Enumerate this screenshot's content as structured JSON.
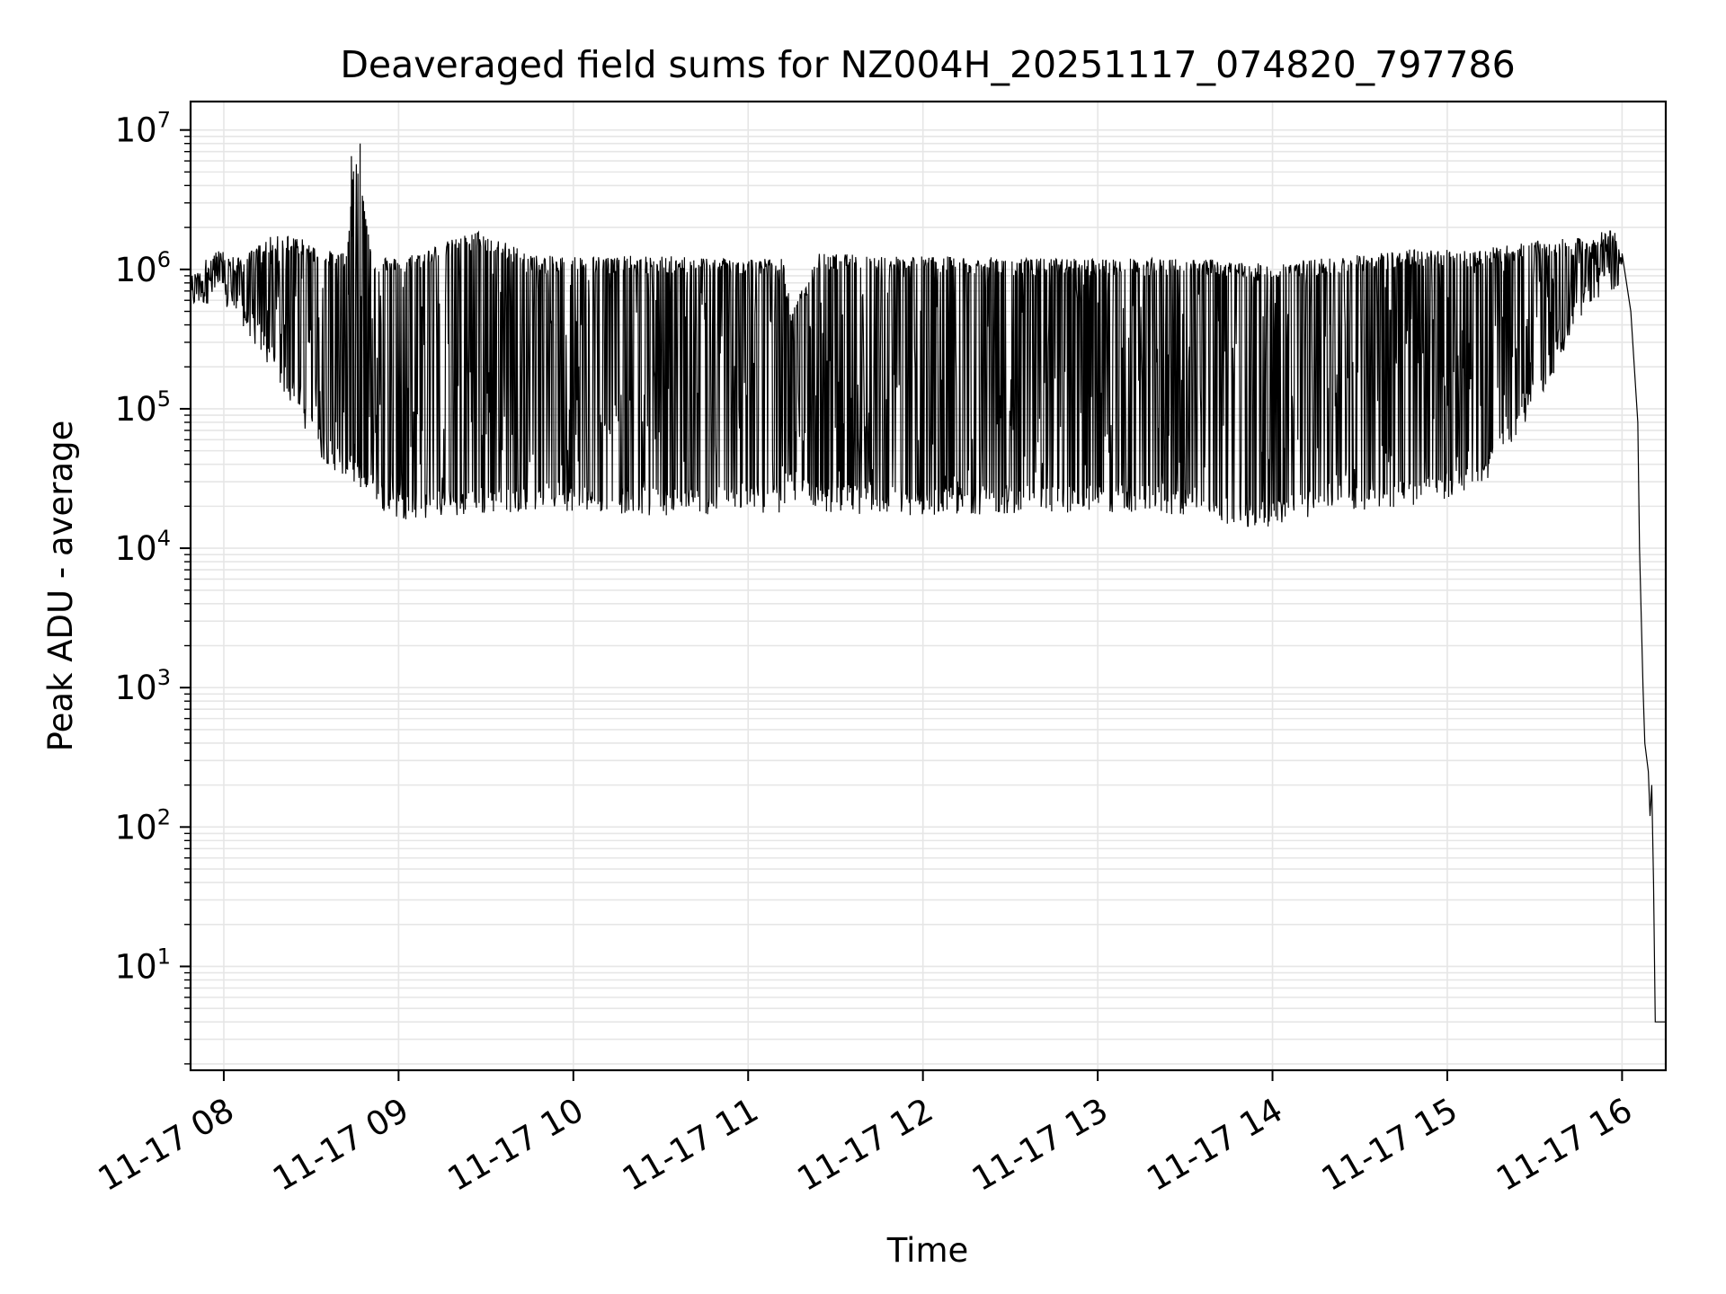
{
  "chart_data": {
    "type": "line",
    "title": "Deaveraged field sums for NZ004H_20251117_074820_797786",
    "xlabel": "Time",
    "ylabel": "Peak ADU - average",
    "yscale": "log",
    "xlim_hours": [
      7.81,
      16.25
    ],
    "ylim": [
      1.8,
      16000000
    ],
    "grid": true,
    "line_color": "#000000",
    "grid_color": "#e6e6e6",
    "x_ticks": [
      {
        "hour": 8,
        "label": "11-17 08"
      },
      {
        "hour": 9,
        "label": "11-17 09"
      },
      {
        "hour": 10,
        "label": "11-17 10"
      },
      {
        "hour": 11,
        "label": "11-17 11"
      },
      {
        "hour": 12,
        "label": "11-17 12"
      },
      {
        "hour": 13,
        "label": "11-17 13"
      },
      {
        "hour": 14,
        "label": "11-17 14"
      },
      {
        "hour": 15,
        "label": "11-17 15"
      },
      {
        "hour": 16,
        "label": "11-17 16"
      }
    ],
    "y_ticks": [
      {
        "value": 10,
        "base": "10",
        "exp": "1"
      },
      {
        "value": 100,
        "base": "10",
        "exp": "2"
      },
      {
        "value": 1000,
        "base": "10",
        "exp": "3"
      },
      {
        "value": 10000,
        "base": "10",
        "exp": "4"
      },
      {
        "value": 100000,
        "base": "10",
        "exp": "5"
      },
      {
        "value": 1000000,
        "base": "10",
        "exp": "6"
      },
      {
        "value": 10000000,
        "base": "10",
        "exp": "7"
      }
    ],
    "series": [
      {
        "name": "field sums",
        "envelope": [
          {
            "hour": 7.81,
            "high": 900000,
            "low": 500000
          },
          {
            "hour": 7.95,
            "high": 1400000,
            "low": 600000
          },
          {
            "hour": 8.1,
            "high": 1200000,
            "low": 400000
          },
          {
            "hour": 8.25,
            "high": 1700000,
            "low": 200000
          },
          {
            "hour": 8.4,
            "high": 1800000,
            "low": 100000
          },
          {
            "hour": 8.55,
            "high": 1400000,
            "low": 45000
          },
          {
            "hour": 8.7,
            "high": 1300000,
            "low": 30000
          },
          {
            "hour": 8.75,
            "high": 8000000,
            "low": 28000
          },
          {
            "hour": 8.85,
            "high": 1300000,
            "low": 20000
          },
          {
            "hour": 9.0,
            "high": 1200000,
            "low": 16000
          },
          {
            "hour": 9.45,
            "high": 1900000,
            "low": 17000
          },
          {
            "hour": 9.8,
            "high": 1250000,
            "low": 19000
          },
          {
            "hour": 10.5,
            "high": 1250000,
            "low": 17000
          },
          {
            "hour": 11.2,
            "high": 1200000,
            "low": 18000
          },
          {
            "hour": 11.25,
            "high": 500000,
            "low": 22000
          },
          {
            "hour": 11.4,
            "high": 1300000,
            "low": 18000
          },
          {
            "hour": 12.0,
            "high": 1250000,
            "low": 17000
          },
          {
            "hour": 12.7,
            "high": 1200000,
            "low": 18000
          },
          {
            "hour": 13.0,
            "high": 1200000,
            "low": 18000
          },
          {
            "hour": 13.6,
            "high": 1200000,
            "low": 17000
          },
          {
            "hour": 13.9,
            "high": 1100000,
            "low": 13000
          },
          {
            "hour": 14.3,
            "high": 1200000,
            "low": 18000
          },
          {
            "hour": 14.8,
            "high": 1400000,
            "low": 20000
          },
          {
            "hour": 15.2,
            "high": 1400000,
            "low": 25000
          },
          {
            "hour": 15.5,
            "high": 1600000,
            "low": 100000
          },
          {
            "hour": 15.8,
            "high": 1700000,
            "low": 500000
          },
          {
            "hour": 15.95,
            "high": 2000000,
            "low": 700000
          },
          {
            "hour": 16.0,
            "high": 1300000,
            "low": 800000
          }
        ],
        "tail": [
          {
            "hour": 16.0,
            "value": 1300000
          },
          {
            "hour": 16.05,
            "value": 500000
          },
          {
            "hour": 16.09,
            "value": 80000
          },
          {
            "hour": 16.1,
            "value": 10000
          },
          {
            "hour": 16.12,
            "value": 1000
          },
          {
            "hour": 16.13,
            "value": 400
          },
          {
            "hour": 16.15,
            "value": 250
          },
          {
            "hour": 16.16,
            "value": 120
          },
          {
            "hour": 16.17,
            "value": 200
          },
          {
            "hour": 16.18,
            "value": 40
          },
          {
            "hour": 16.19,
            "value": 4
          },
          {
            "hour": 16.25,
            "value": 4
          }
        ],
        "spike": [
          {
            "hour": 8.73,
            "value": 6500000
          },
          {
            "hour": 8.78,
            "value": 8000000
          }
        ]
      }
    ]
  }
}
